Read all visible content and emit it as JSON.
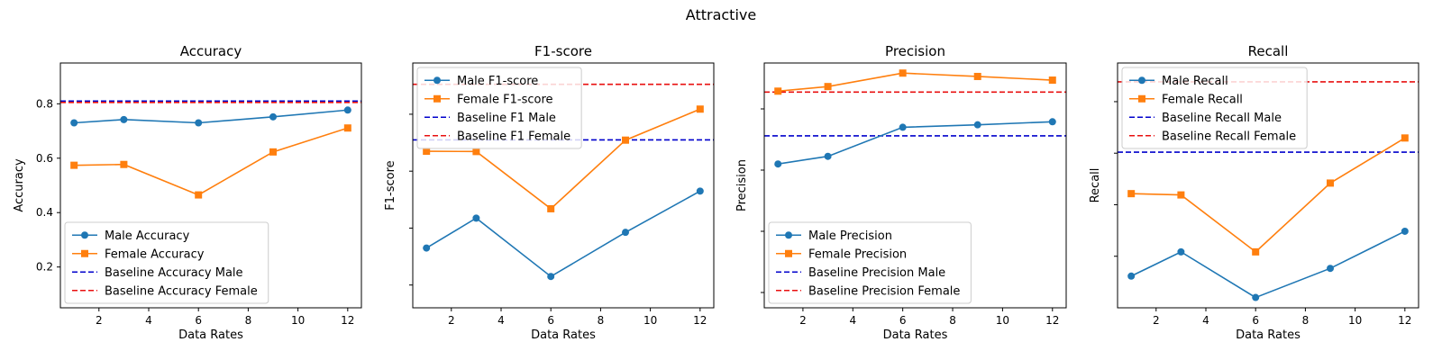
{
  "figure": {
    "suptitle": "Attractive"
  },
  "colors": {
    "male": "#1f77b4",
    "female": "#ff7f0e",
    "baseline_male": "#0000cc",
    "baseline_female": "#e81010"
  },
  "chart_data": [
    {
      "type": "line",
      "title": "Accuracy",
      "xlabel": "Data Rates",
      "ylabel": "Accuracy",
      "xlim": [
        0.45,
        12.55
      ],
      "ylim": [
        0.05,
        0.95
      ],
      "xticks": [
        2,
        4,
        6,
        8,
        10,
        12
      ],
      "yticks": [
        0.2,
        0.4,
        0.6,
        0.8
      ],
      "show_ytick_labels": true,
      "legend": "lower-left",
      "x": [
        1,
        3,
        6,
        9,
        12
      ],
      "series": [
        {
          "name": "Male Accuracy",
          "key": "male",
          "marker": "circle",
          "values": [
            0.73,
            0.742,
            0.73,
            0.752,
            0.777
          ]
        },
        {
          "name": "Female Accuracy",
          "key": "female",
          "marker": "square",
          "values": [
            0.574,
            0.577,
            0.465,
            0.623,
            0.711
          ]
        }
      ],
      "baselines": [
        {
          "name": "Baseline Accuracy Male",
          "key": "baseline_male",
          "value": 0.81
        },
        {
          "name": "Baseline Accuracy Female",
          "key": "baseline_female",
          "value": 0.805
        }
      ]
    },
    {
      "type": "line",
      "title": "F1-score",
      "xlabel": "Data Rates",
      "ylabel": "F1-score",
      "xlim": [
        0.45,
        12.55
      ],
      "ylim": [
        0.12,
        0.98
      ],
      "xticks": [
        2,
        4,
        6,
        8,
        10,
        12
      ],
      "yticks": [
        0.2,
        0.4,
        0.6,
        0.8
      ],
      "show_ytick_labels": false,
      "legend": "upper-left",
      "x": [
        1,
        3,
        6,
        9,
        12
      ],
      "series": [
        {
          "name": "Male F1-score",
          "key": "male",
          "marker": "circle",
          "values": [
            0.33,
            0.435,
            0.23,
            0.385,
            0.53
          ]
        },
        {
          "name": "Female F1-score",
          "key": "female",
          "marker": "square",
          "values": [
            0.67,
            0.669,
            0.468,
            0.709,
            0.818
          ]
        }
      ],
      "baselines": [
        {
          "name": "Baseline F1 Male",
          "key": "baseline_male",
          "value": 0.71
        },
        {
          "name": "Baseline F1 Female",
          "key": "baseline_female",
          "value": 0.905
        }
      ]
    },
    {
      "type": "line",
      "title": "Precision",
      "xlabel": "Data Rates",
      "ylabel": "Precision",
      "xlim": [
        0.45,
        12.55
      ],
      "ylim": [
        0.15,
        0.95
      ],
      "xticks": [
        2,
        4,
        6,
        8,
        10,
        12
      ],
      "yticks": [
        0.2,
        0.4,
        0.6,
        0.8
      ],
      "show_ytick_labels": false,
      "legend": "lower-left",
      "x": [
        1,
        3,
        6,
        9,
        12
      ],
      "series": [
        {
          "name": "Male Precision",
          "key": "male",
          "marker": "circle",
          "values": [
            0.62,
            0.645,
            0.74,
            0.748,
            0.758
          ]
        },
        {
          "name": "Female Precision",
          "key": "female",
          "marker": "square",
          "values": [
            0.858,
            0.873,
            0.917,
            0.906,
            0.894
          ]
        }
      ],
      "baselines": [
        {
          "name": "Baseline Precision Male",
          "key": "baseline_male",
          "value": 0.712
        },
        {
          "name": "Baseline Precision Female",
          "key": "baseline_female",
          "value": 0.855
        }
      ]
    },
    {
      "type": "line",
      "title": "Recall",
      "xlabel": "Data Rates",
      "ylabel": "Recall",
      "xlim": [
        0.45,
        12.55
      ],
      "ylim": [
        0.0,
        0.95
      ],
      "xticks": [
        2,
        4,
        6,
        8,
        10,
        12
      ],
      "yticks": [
        0.2,
        0.4,
        0.6,
        0.8
      ],
      "show_ytick_labels": false,
      "legend": "upper-left",
      "x": [
        1,
        3,
        6,
        9,
        12
      ],
      "series": [
        {
          "name": "Male Recall",
          "key": "male",
          "marker": "circle",
          "values": [
            0.123,
            0.217,
            0.04,
            0.153,
            0.297
          ]
        },
        {
          "name": "Female Recall",
          "key": "female",
          "marker": "square",
          "values": [
            0.443,
            0.438,
            0.217,
            0.484,
            0.659
          ]
        }
      ],
      "baselines": [
        {
          "name": "Baseline Recall Male",
          "key": "baseline_male",
          "value": 0.604
        },
        {
          "name": "Baseline Recall Female",
          "key": "baseline_female",
          "value": 0.877
        }
      ]
    }
  ]
}
